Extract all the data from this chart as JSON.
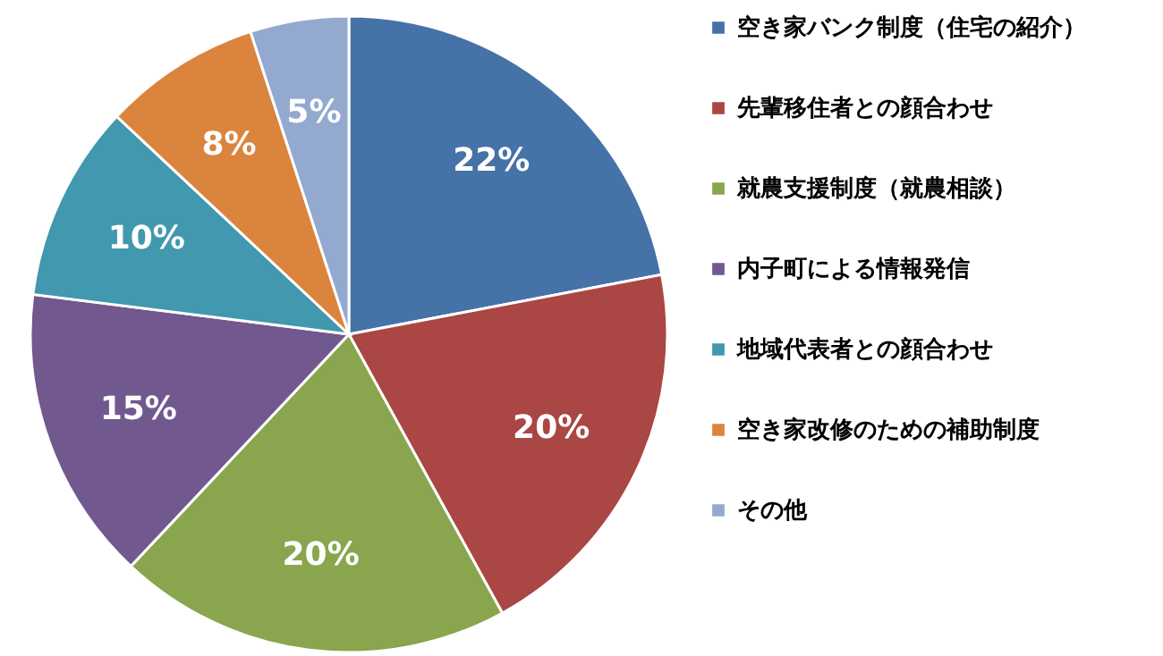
{
  "chart_data": {
    "type": "pie",
    "categories": [
      "空き家バンク制度（住宅の紹介）",
      "先輩移住者との顔合わせ",
      "就農支援制度（就農相談）",
      "内子町による情報発信",
      "地域代表者との顔合わせ",
      "空き家改修のための補助制度",
      "その他"
    ],
    "values": [
      22,
      20,
      20,
      15,
      10,
      8,
      5
    ],
    "colors": [
      "#4572a7",
      "#aa4643",
      "#89a54e",
      "#71588f",
      "#4198af",
      "#db843d",
      "#93a9cf"
    ],
    "value_labels": [
      "22%",
      "20%",
      "20%",
      "15%",
      "10%",
      "8%",
      "5%"
    ],
    "legend": "right"
  }
}
